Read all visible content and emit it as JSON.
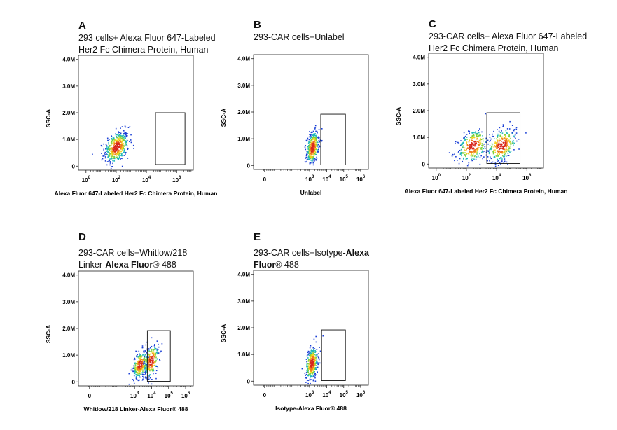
{
  "chart_data": [
    {
      "type": "scatter",
      "letter": "A",
      "title_lines": [
        [
          {
            "text": "293 cells+ Alexa Fluor 647-Labeled",
            "bold": false
          }
        ],
        [
          {
            "text": "Her2 Fc Chimera Protein, Human",
            "bold": false
          }
        ]
      ],
      "xlabel": "Alexa Fluor 647-Labeled Her2 Fc Chimera Protein, Human",
      "ylabel": "SSC-A",
      "x_scale": "log",
      "y_ticks": [
        {
          "v": 0,
          "label": "0"
        },
        {
          "v": 1,
          "label": "1.0M"
        },
        {
          "v": 2,
          "label": "2.0M"
        },
        {
          "v": 3,
          "label": "3.0M"
        },
        {
          "v": 4,
          "label": "4.0M"
        }
      ],
      "x_ticks": [
        {
          "base": "10",
          "exp": "0",
          "v": 0
        },
        {
          "base": "10",
          "exp": "2",
          "v": 2
        },
        {
          "base": "10",
          "exp": "4",
          "v": 4
        },
        {
          "base": "10",
          "exp": "6",
          "v": 6
        }
      ],
      "xlim": [
        -0.5,
        7.1
      ],
      "ylim": [
        -0.15,
        4.15
      ],
      "gate": {
        "x": [
          4.6,
          6.55
        ],
        "y": [
          0.06,
          2.0
        ]
      },
      "clusters": [
        {
          "cx": 2.0,
          "cy": 0.73,
          "sx": 0.4,
          "sy": 0.28,
          "n": 460
        }
      ]
    },
    {
      "type": "scatter",
      "letter": "B",
      "title_lines": [
        [
          {
            "text": "293-CAR cells+Unlabel",
            "bold": false
          }
        ]
      ],
      "xlabel": "Unlabel",
      "ylabel": "SSC-A",
      "x_scale": "log",
      "y_ticks": [
        {
          "v": 0,
          "label": "0"
        },
        {
          "v": 1,
          "label": "1.0M"
        },
        {
          "v": 2,
          "label": "2.0M"
        },
        {
          "v": 3,
          "label": "3.0M"
        },
        {
          "v": 4,
          "label": "4.0M"
        }
      ],
      "x_ticks": [
        {
          "base": "0",
          "exp": "",
          "v": 0.35
        },
        {
          "base": "10",
          "exp": "3",
          "v": 3
        },
        {
          "base": "10",
          "exp": "4",
          "v": 4
        },
        {
          "base": "10",
          "exp": "5",
          "v": 5
        },
        {
          "base": "10",
          "exp": "6",
          "v": 6
        }
      ],
      "xlim": [
        -0.3,
        6.45
      ],
      "ylim": [
        -0.15,
        4.15
      ],
      "gate": {
        "x": [
          3.65,
          5.1
        ],
        "y": [
          0.02,
          1.92
        ]
      },
      "clusters": [
        {
          "cx": 3.15,
          "cy": 0.68,
          "sx": 0.18,
          "sy": 0.3,
          "n": 380
        }
      ]
    },
    {
      "type": "scatter",
      "letter": "C",
      "title_lines": [
        [
          {
            "text": "293-CAR cells+ Alexa Fluor 647-Labeled",
            "bold": false
          }
        ],
        [
          {
            "text": "Her2 Fc Chimera Protein, Human",
            "bold": false
          }
        ]
      ],
      "xlabel": "Alexa Fluor 647-Labeled Her2 Fc Chimera Protein, Human",
      "ylabel": "SSC-A",
      "x_scale": "log",
      "y_ticks": [
        {
          "v": 0,
          "label": "0"
        },
        {
          "v": 1,
          "label": "1.0M"
        },
        {
          "v": 2,
          "label": "2.0M"
        },
        {
          "v": 3,
          "label": "3.0M"
        },
        {
          "v": 4,
          "label": "4.0M"
        }
      ],
      "x_ticks": [
        {
          "base": "10",
          "exp": "0",
          "v": 0
        },
        {
          "base": "10",
          "exp": "2",
          "v": 2
        },
        {
          "base": "10",
          "exp": "4",
          "v": 4
        },
        {
          "base": "10",
          "exp": "6",
          "v": 6
        }
      ],
      "xlim": [
        -0.5,
        7.1
      ],
      "ylim": [
        -0.15,
        4.15
      ],
      "gate": {
        "x": [
          3.35,
          5.55
        ],
        "y": [
          0.02,
          1.92
        ]
      },
      "clusters": [
        {
          "cx": 2.4,
          "cy": 0.7,
          "sx": 0.5,
          "sy": 0.3,
          "n": 300
        },
        {
          "cx": 4.3,
          "cy": 0.72,
          "sx": 0.5,
          "sy": 0.3,
          "n": 320
        }
      ]
    },
    {
      "type": "scatter",
      "letter": "D",
      "title_lines": [
        [
          {
            "text": "293-CAR    cells+Whitlow/218",
            "bold": false
          }
        ],
        [
          {
            "text": "Linker-",
            "bold": false
          },
          {
            "text": "Alexa Fluor",
            "bold": true
          },
          {
            "text": "® 488",
            "bold": false
          }
        ]
      ],
      "xlabel": "Whitlow/218 Linker-Alexa Fluor® 488",
      "ylabel": "SSC-A",
      "x_scale": "log",
      "y_ticks": [
        {
          "v": 0,
          "label": "0"
        },
        {
          "v": 1,
          "label": "1.0M"
        },
        {
          "v": 2,
          "label": "2.0M"
        },
        {
          "v": 3,
          "label": "3.0M"
        },
        {
          "v": 4,
          "label": "4.0M"
        }
      ],
      "x_ticks": [
        {
          "base": "0",
          "exp": "",
          "v": 0.35
        },
        {
          "base": "10",
          "exp": "3",
          "v": 3
        },
        {
          "base": "10",
          "exp": "4",
          "v": 4
        },
        {
          "base": "10",
          "exp": "5",
          "v": 5
        },
        {
          "base": "10",
          "exp": "6",
          "v": 6
        }
      ],
      "xlim": [
        -0.3,
        6.45
      ],
      "ylim": [
        -0.15,
        4.15
      ],
      "gate": {
        "x": [
          3.75,
          5.1
        ],
        "y": [
          0.02,
          1.92
        ]
      },
      "clusters": [
        {
          "cx": 3.3,
          "cy": 0.65,
          "sx": 0.22,
          "sy": 0.25,
          "n": 300
        },
        {
          "cx": 3.95,
          "cy": 0.8,
          "sx": 0.22,
          "sy": 0.3,
          "n": 250
        }
      ]
    },
    {
      "type": "scatter",
      "letter": "E",
      "title_lines": [
        [
          {
            "text": "293-CAR    cells+Isotype-",
            "bold": false
          },
          {
            "text": "Alexa",
            "bold": true
          }
        ],
        [
          {
            "text": "Fluor",
            "bold": true
          },
          {
            "text": "® 488",
            "bold": false
          }
        ]
      ],
      "xlabel": "Isotype-Alexa Fluor® 488",
      "ylabel": "SSC-A",
      "x_scale": "log",
      "y_ticks": [
        {
          "v": 0,
          "label": "0"
        },
        {
          "v": 1,
          "label": "1.0M"
        },
        {
          "v": 2,
          "label": "2.0M"
        },
        {
          "v": 3,
          "label": "3.0M"
        },
        {
          "v": 4,
          "label": "4.0M"
        }
      ],
      "x_ticks": [
        {
          "base": "0",
          "exp": "",
          "v": 0.35
        },
        {
          "base": "10",
          "exp": "3",
          "v": 3
        },
        {
          "base": "10",
          "exp": "4",
          "v": 4
        },
        {
          "base": "10",
          "exp": "5",
          "v": 5
        },
        {
          "base": "10",
          "exp": "6",
          "v": 6
        }
      ],
      "xlim": [
        -0.3,
        6.45
      ],
      "ylim": [
        -0.15,
        4.15
      ],
      "gate": {
        "x": [
          3.7,
          5.1
        ],
        "y": [
          0.02,
          1.92
        ]
      },
      "clusters": [
        {
          "cx": 3.1,
          "cy": 0.68,
          "sx": 0.18,
          "sy": 0.3,
          "n": 380
        }
      ]
    }
  ]
}
